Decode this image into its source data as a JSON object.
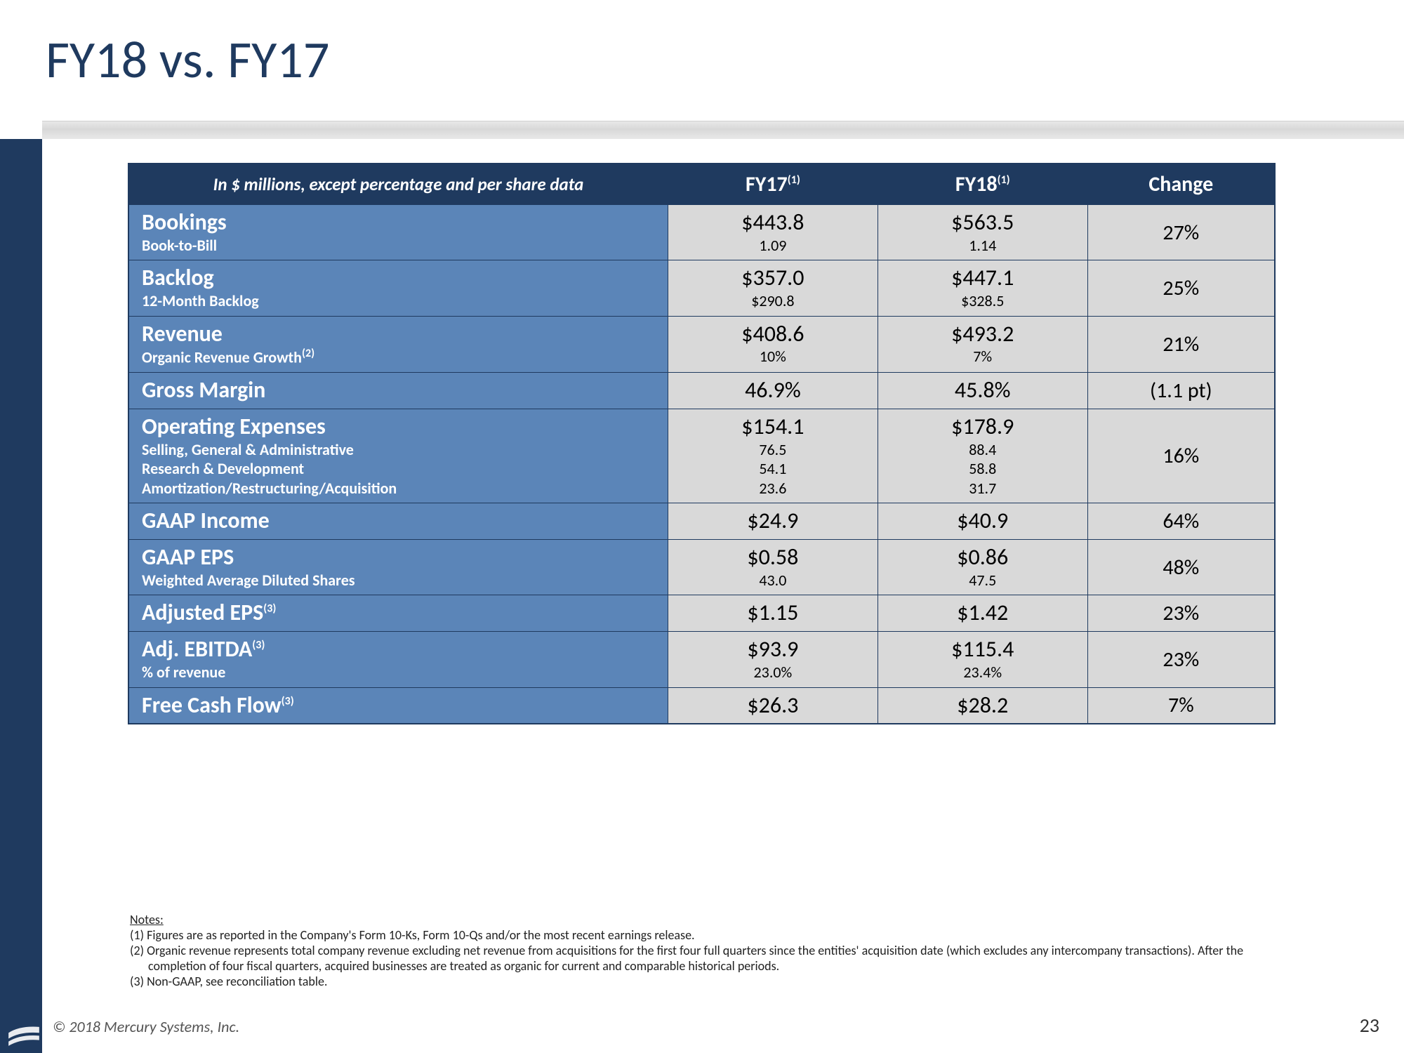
{
  "title": "FY18 vs. FY17",
  "colors": {
    "navy": "#1f3a5f",
    "rowBlue": "#5b85b8",
    "cellGrey": "#d9d9d9",
    "white": "#ffffff",
    "black": "#000000",
    "dividerGrey": "#e0e0e0"
  },
  "header": {
    "subhead": "In $ millions, except percentage and per share data",
    "col1": "FY17",
    "col1_sup": "(1)",
    "col2": "FY18",
    "col2_sup": "(1)",
    "col3": "Change"
  },
  "rows": [
    {
      "label_main": "Bookings",
      "label_subs": [
        "Book-to-Bill"
      ],
      "fy17_main": "$443.8",
      "fy17_subs": [
        "1.09"
      ],
      "fy18_main": "$563.5",
      "fy18_subs": [
        "1.14"
      ],
      "change": "27%"
    },
    {
      "label_main": "Backlog",
      "label_subs": [
        "12-Month Backlog"
      ],
      "fy17_main": "$357.0",
      "fy17_subs": [
        "$290.8"
      ],
      "fy18_main": "$447.1",
      "fy18_subs": [
        "$328.5"
      ],
      "change": "25%"
    },
    {
      "label_main": "Revenue",
      "label_subs": [
        "Organic Revenue Growth"
      ],
      "label_sub_sup": "(2)",
      "fy17_main": "$408.6",
      "fy17_subs": [
        "10%"
      ],
      "fy18_main": "$493.2",
      "fy18_subs": [
        "7%"
      ],
      "change": "21%"
    },
    {
      "label_main": "Gross Margin",
      "label_subs": [],
      "fy17_main": "46.9%",
      "fy17_subs": [],
      "fy18_main": "45.8%",
      "fy18_subs": [],
      "change": "(1.1 pt)"
    },
    {
      "label_main": "Operating Expenses",
      "label_subs": [
        "Selling, General & Administrative",
        "Research & Development",
        "Amortization/Restructuring/Acquisition"
      ],
      "fy17_main": "$154.1",
      "fy17_subs": [
        "76.5",
        "54.1",
        "23.6"
      ],
      "fy18_main": "$178.9",
      "fy18_subs": [
        "88.4",
        "58.8",
        "31.7"
      ],
      "change": "16%"
    },
    {
      "label_main": "GAAP Income",
      "label_subs": [],
      "fy17_main": "$24.9",
      "fy17_subs": [],
      "fy18_main": "$40.9",
      "fy18_subs": [],
      "change": "64%"
    },
    {
      "label_main": "GAAP EPS",
      "label_subs": [
        "Weighted Average Diluted Shares"
      ],
      "fy17_main": "$0.58",
      "fy17_subs": [
        "43.0"
      ],
      "fy18_main": "$0.86",
      "fy18_subs": [
        "47.5"
      ],
      "change": "48%"
    },
    {
      "label_main": "Adjusted EPS",
      "label_main_sup": "(3)",
      "label_subs": [],
      "fy17_main": "$1.15",
      "fy17_subs": [],
      "fy18_main": "$1.42",
      "fy18_subs": [],
      "change": "23%"
    },
    {
      "label_main": "Adj. EBITDA",
      "label_main_sup": "(3)",
      "label_subs": [
        "% of revenue"
      ],
      "fy17_main": "$93.9",
      "fy17_subs": [
        "23.0%"
      ],
      "fy18_main": "$115.4",
      "fy18_subs": [
        "23.4%"
      ],
      "change": "23%"
    },
    {
      "label_main": "Free Cash Flow",
      "label_main_sup": "(3)",
      "label_subs": [],
      "fy17_main": "$26.3",
      "fy17_subs": [],
      "fy18_main": "$28.2",
      "fy18_subs": [],
      "change": "7%"
    }
  ],
  "notes": {
    "heading": "Notes:",
    "lines": [
      "(1) Figures are as reported in the Company's Form 10-Ks, Form 10-Qs and/or the most recent earnings release.",
      "(2) Organic revenue represents total company revenue excluding net revenue from acquisitions for the first four full quarters since the entities' acquisition date (which excludes any intercompany transactions). After the completion of four fiscal quarters, acquired businesses are treated as organic for current and comparable historical periods.",
      "(3) Non-GAAP, see reconciliation table."
    ]
  },
  "copyright": "© 2018 Mercury Systems, Inc.",
  "page_number": "23"
}
